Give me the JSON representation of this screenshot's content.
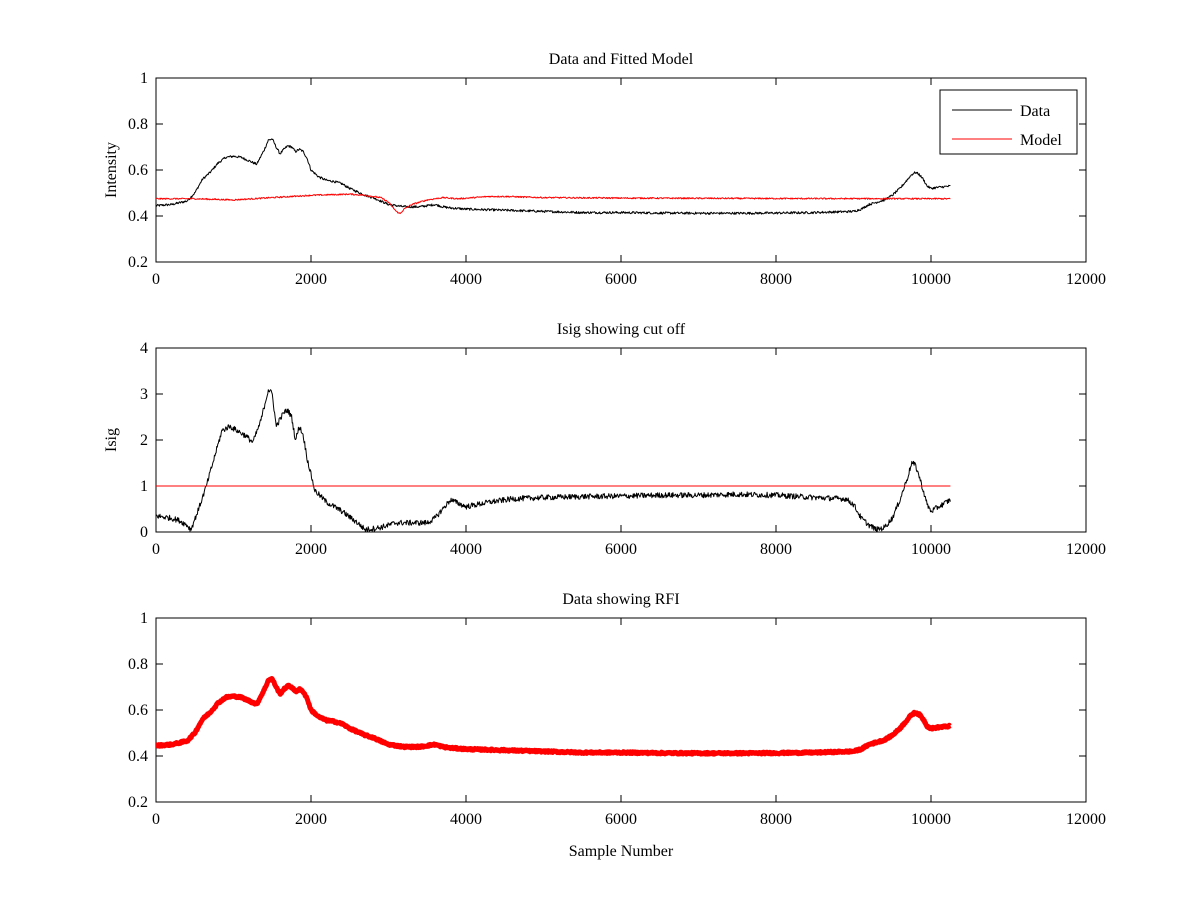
{
  "chart_data": [
    {
      "type": "line",
      "title": "Data and Fitted Model",
      "xlabel": "",
      "ylabel": "Intensity",
      "xlim": [
        0,
        12000
      ],
      "ylim": [
        0.2,
        1
      ],
      "xticks": [
        0,
        2000,
        4000,
        6000,
        8000,
        10000,
        12000
      ],
      "yticks": [
        0.2,
        0.4,
        0.6,
        0.8,
        1
      ],
      "xtick_labels": [
        "0",
        "2000",
        "4000",
        "6000",
        "8000",
        "10000",
        "12000"
      ],
      "ytick_labels": [
        "0.2",
        "0.4",
        "0.6",
        "0.8",
        "1"
      ],
      "legend": {
        "placement": "top-right",
        "entries": [
          "Data",
          "Model"
        ]
      },
      "series": [
        {
          "name": "Data",
          "color": "#000000",
          "x": [
            0,
            200,
            400,
            500,
            600,
            700,
            800,
            900,
            1000,
            1100,
            1200,
            1300,
            1400,
            1450,
            1500,
            1550,
            1600,
            1650,
            1700,
            1750,
            1800,
            1850,
            1900,
            1950,
            2000,
            2100,
            2200,
            2300,
            2400,
            2500,
            2600,
            2700,
            2800,
            2900,
            3000,
            3100,
            3200,
            3300,
            3400,
            3500,
            3600,
            3700,
            3800,
            4000,
            4500,
            5000,
            5500,
            6000,
            6500,
            7000,
            7500,
            8000,
            8500,
            9000,
            9100,
            9200,
            9300,
            9400,
            9500,
            9600,
            9700,
            9750,
            9800,
            9850,
            9900,
            9950,
            10000,
            10100,
            10250
          ],
          "y": [
            0.445,
            0.45,
            0.465,
            0.5,
            0.56,
            0.59,
            0.63,
            0.655,
            0.66,
            0.655,
            0.64,
            0.625,
            0.69,
            0.73,
            0.735,
            0.7,
            0.67,
            0.69,
            0.705,
            0.7,
            0.68,
            0.69,
            0.68,
            0.65,
            0.6,
            0.57,
            0.555,
            0.55,
            0.54,
            0.52,
            0.505,
            0.49,
            0.48,
            0.465,
            0.45,
            0.445,
            0.44,
            0.44,
            0.44,
            0.445,
            0.45,
            0.44,
            0.435,
            0.43,
            0.425,
            0.42,
            0.415,
            0.415,
            0.413,
            0.412,
            0.412,
            0.413,
            0.415,
            0.42,
            0.43,
            0.45,
            0.46,
            0.47,
            0.49,
            0.52,
            0.56,
            0.58,
            0.59,
            0.58,
            0.56,
            0.53,
            0.52,
            0.525,
            0.53
          ],
          "noise": 0.005
        },
        {
          "name": "Model",
          "color": "#ff0000",
          "x": [
            0,
            500,
            1000,
            1500,
            2000,
            2500,
            2700,
            2900,
            3000,
            3100,
            3150,
            3200,
            3300,
            3400,
            3500,
            3700,
            3900,
            4100,
            4300,
            4500,
            5000,
            6000,
            8000,
            10250
          ],
          "y": [
            0.475,
            0.475,
            0.47,
            0.48,
            0.49,
            0.495,
            0.49,
            0.48,
            0.46,
            0.42,
            0.41,
            0.43,
            0.45,
            0.46,
            0.47,
            0.48,
            0.475,
            0.48,
            0.485,
            0.485,
            0.48,
            0.478,
            0.476,
            0.475
          ],
          "noise": 0.003
        }
      ]
    },
    {
      "type": "line",
      "title": "Isig showing cut off",
      "xlabel": "",
      "ylabel": "Isig",
      "xlim": [
        0,
        12000
      ],
      "ylim": [
        0,
        4
      ],
      "xticks": [
        0,
        2000,
        4000,
        6000,
        8000,
        10000,
        12000
      ],
      "yticks": [
        0,
        1,
        2,
        3,
        4
      ],
      "xtick_labels": [
        "0",
        "2000",
        "4000",
        "6000",
        "8000",
        "10000",
        "12000"
      ],
      "ytick_labels": [
        "0",
        "1",
        "2",
        "3",
        "4"
      ],
      "series": [
        {
          "color": "#000000",
          "x": [
            0,
            200,
            300,
            400,
            450,
            550,
            650,
            750,
            850,
            950,
            1050,
            1150,
            1250,
            1350,
            1450,
            1500,
            1550,
            1650,
            1700,
            1750,
            1800,
            1850,
            1900,
            1950,
            2050,
            2200,
            2400,
            2600,
            2700,
            2900,
            3100,
            3300,
            3500,
            3600,
            3700,
            3800,
            4000,
            4300,
            4600,
            5000,
            5500,
            6000,
            6500,
            7000,
            7500,
            8000,
            8500,
            8900,
            9000,
            9100,
            9200,
            9300,
            9400,
            9500,
            9600,
            9700,
            9750,
            9800,
            9850,
            9900,
            9950,
            10000,
            10100,
            10250
          ],
          "y": [
            0.35,
            0.3,
            0.25,
            0.15,
            0.05,
            0.5,
            1.0,
            1.6,
            2.2,
            2.3,
            2.2,
            2.1,
            1.95,
            2.4,
            3.1,
            3.0,
            2.3,
            2.6,
            2.65,
            2.5,
            2.0,
            2.3,
            2.1,
            1.6,
            0.9,
            0.65,
            0.45,
            0.2,
            0.05,
            0.1,
            0.2,
            0.2,
            0.2,
            0.3,
            0.5,
            0.7,
            0.55,
            0.65,
            0.72,
            0.75,
            0.77,
            0.78,
            0.8,
            0.8,
            0.82,
            0.8,
            0.75,
            0.72,
            0.6,
            0.3,
            0.15,
            0.05,
            0.1,
            0.3,
            0.7,
            1.2,
            1.5,
            1.45,
            1.2,
            0.9,
            0.6,
            0.45,
            0.55,
            0.7
          ],
          "noise": 0.06
        },
        {
          "color": "#ff0000",
          "x": [
            0,
            10250
          ],
          "y": [
            1,
            1
          ],
          "noise": 0
        }
      ]
    },
    {
      "type": "line",
      "title": "Data showing RFI",
      "xlabel": "Sample Number",
      "ylabel": "",
      "xlim": [
        0,
        12000
      ],
      "ylim": [
        0.2,
        1
      ],
      "xticks": [
        0,
        2000,
        4000,
        6000,
        8000,
        10000,
        12000
      ],
      "yticks": [
        0.2,
        0.4,
        0.6,
        0.8,
        1
      ],
      "xtick_labels": [
        "0",
        "2000",
        "4000",
        "6000",
        "8000",
        "10000",
        "12000"
      ],
      "ytick_labels": [
        "0.2",
        "0.4",
        "0.6",
        "0.8",
        "1"
      ],
      "series": [
        {
          "color": "#ff0000",
          "x": [
            0,
            200,
            400,
            500,
            600,
            700,
            800,
            900,
            1000,
            1100,
            1200,
            1300,
            1400,
            1450,
            1500,
            1550,
            1600,
            1650,
            1700,
            1750,
            1800,
            1850,
            1900,
            1950,
            2000,
            2100,
            2200,
            2300,
            2400,
            2500,
            2600,
            2700,
            2800,
            2900,
            3000,
            3100,
            3200,
            3300,
            3400,
            3500,
            3600,
            3700,
            3800,
            4000,
            4500,
            5000,
            5500,
            6000,
            6500,
            7000,
            7500,
            8000,
            8500,
            9000,
            9100,
            9200,
            9300,
            9400,
            9500,
            9600,
            9700,
            9750,
            9800,
            9850,
            9900,
            9950,
            10000,
            10100,
            10250
          ],
          "y": [
            0.445,
            0.45,
            0.465,
            0.5,
            0.56,
            0.59,
            0.63,
            0.655,
            0.66,
            0.655,
            0.64,
            0.625,
            0.69,
            0.73,
            0.735,
            0.7,
            0.67,
            0.69,
            0.705,
            0.7,
            0.68,
            0.69,
            0.68,
            0.65,
            0.6,
            0.57,
            0.555,
            0.55,
            0.54,
            0.52,
            0.505,
            0.49,
            0.48,
            0.465,
            0.45,
            0.445,
            0.44,
            0.44,
            0.44,
            0.445,
            0.45,
            0.44,
            0.435,
            0.43,
            0.425,
            0.42,
            0.415,
            0.415,
            0.413,
            0.412,
            0.412,
            0.413,
            0.415,
            0.42,
            0.43,
            0.45,
            0.46,
            0.47,
            0.49,
            0.52,
            0.56,
            0.58,
            0.59,
            0.58,
            0.56,
            0.53,
            0.52,
            0.525,
            0.53
          ],
          "noise": 0.004
        }
      ]
    }
  ]
}
